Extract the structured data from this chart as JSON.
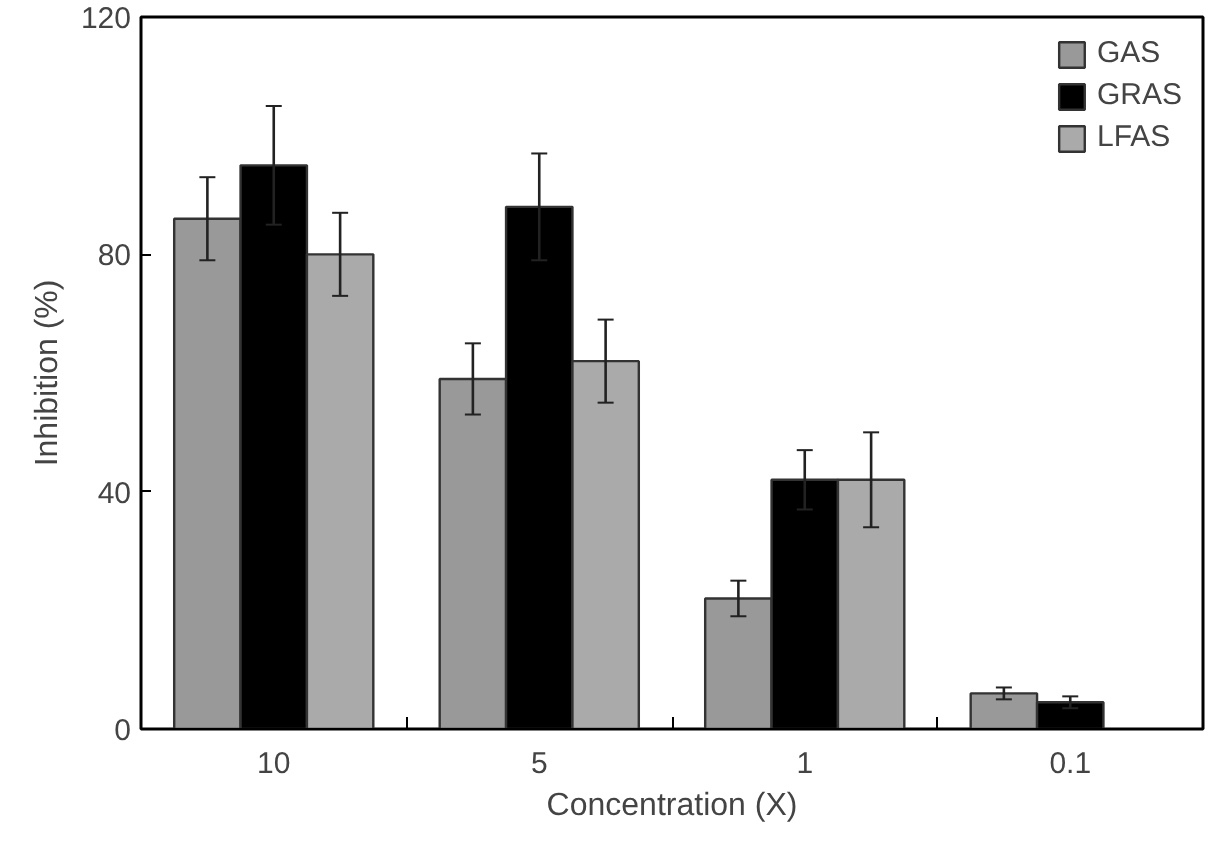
{
  "chart_data": {
    "type": "bar",
    "xlabel": "Concentration (X)",
    "ylabel": "Inhibition (%)",
    "categories": [
      "10",
      "5",
      "1",
      "0.1"
    ],
    "series": [
      {
        "name": "GAS",
        "color": "#999999",
        "values": [
          86,
          59,
          22,
          6
        ],
        "errors": [
          7,
          6,
          3,
          1
        ]
      },
      {
        "name": "GRAS",
        "color": "#000000",
        "values": [
          95,
          88,
          42,
          4.5
        ],
        "errors": [
          10,
          9,
          5,
          1
        ]
      },
      {
        "name": "LFAS",
        "color": "#aaaaaa",
        "values": [
          80,
          62,
          42,
          null
        ],
        "errors": [
          7,
          7,
          8,
          null
        ]
      }
    ],
    "ylim": [
      0,
      120
    ],
    "yticks": [
      0,
      40,
      80,
      120
    ],
    "grid": false,
    "legend": "top right"
  }
}
